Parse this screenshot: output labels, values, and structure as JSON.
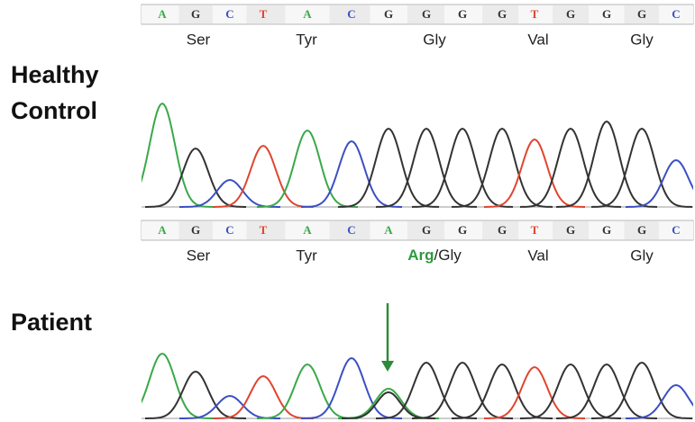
{
  "panels": [
    {
      "label_lines": [
        "Healthy",
        "Control"
      ],
      "bases": [
        "A",
        "G",
        "C",
        "T",
        "A",
        "C",
        "G",
        "G",
        "G",
        "G",
        "T",
        "G",
        "G",
        "G",
        "C"
      ],
      "amino_acids": [
        "Ser",
        "Tyr",
        "Gly",
        "Val",
        "Gly"
      ]
    },
    {
      "label_lines": [
        "Patient"
      ],
      "bases": [
        "A",
        "G",
        "C",
        "T",
        "A",
        "C",
        "A",
        "G",
        "G",
        "G",
        "T",
        "G",
        "G",
        "G",
        "C"
      ],
      "amino_acids": [
        "Ser",
        "Tyr",
        [
          "Arg",
          "/Gly"
        ],
        "Val",
        "Gly"
      ]
    }
  ]
}
